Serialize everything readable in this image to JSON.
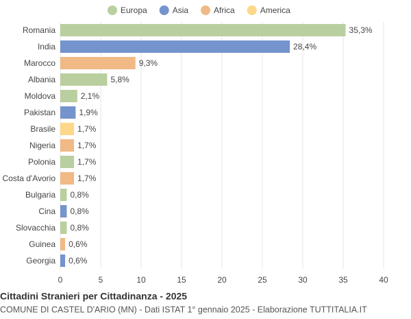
{
  "chart_data": {
    "type": "hbar",
    "title": "Cittadini Stranieri per Cittadinanza - 2025",
    "subtitle": "COMUNE DI CASTEL D'ARIO (MN) - Dati ISTAT 1° gennaio 2025 - Elaborazione TUTTITALIA.IT",
    "legend": [
      {
        "name": "Europa",
        "color": "#b9cf9f"
      },
      {
        "name": "Asia",
        "color": "#7593cd"
      },
      {
        "name": "Africa",
        "color": "#f0b985"
      },
      {
        "name": "America",
        "color": "#fcd888"
      }
    ],
    "categories": [
      "Romania",
      "India",
      "Marocco",
      "Albania",
      "Moldova",
      "Pakistan",
      "Brasile",
      "Nigeria",
      "Polonia",
      "Costa d'Avorio",
      "Bulgaria",
      "Cina",
      "Slovacchia",
      "Guinea",
      "Georgia"
    ],
    "values": [
      35.3,
      28.4,
      9.3,
      5.8,
      2.1,
      1.9,
      1.7,
      1.7,
      1.7,
      1.7,
      0.8,
      0.8,
      0.8,
      0.6,
      0.6
    ],
    "value_labels": [
      "35,3%",
      "28,4%",
      "9,3%",
      "5,8%",
      "2,1%",
      "1,9%",
      "1,7%",
      "1,7%",
      "1,7%",
      "1,7%",
      "0,8%",
      "0,8%",
      "0,8%",
      "0,6%",
      "0,6%"
    ],
    "colors": [
      "#b9cf9f",
      "#7593cd",
      "#f0b985",
      "#b9cf9f",
      "#b9cf9f",
      "#7593cd",
      "#fcd888",
      "#f0b985",
      "#b9cf9f",
      "#f0b985",
      "#b9cf9f",
      "#7593cd",
      "#b9cf9f",
      "#f0b985",
      "#7593cd"
    ],
    "xlim": [
      0,
      40
    ],
    "xticks": [
      0,
      5,
      10,
      15,
      20,
      25,
      30,
      35,
      40
    ],
    "grid": true
  }
}
